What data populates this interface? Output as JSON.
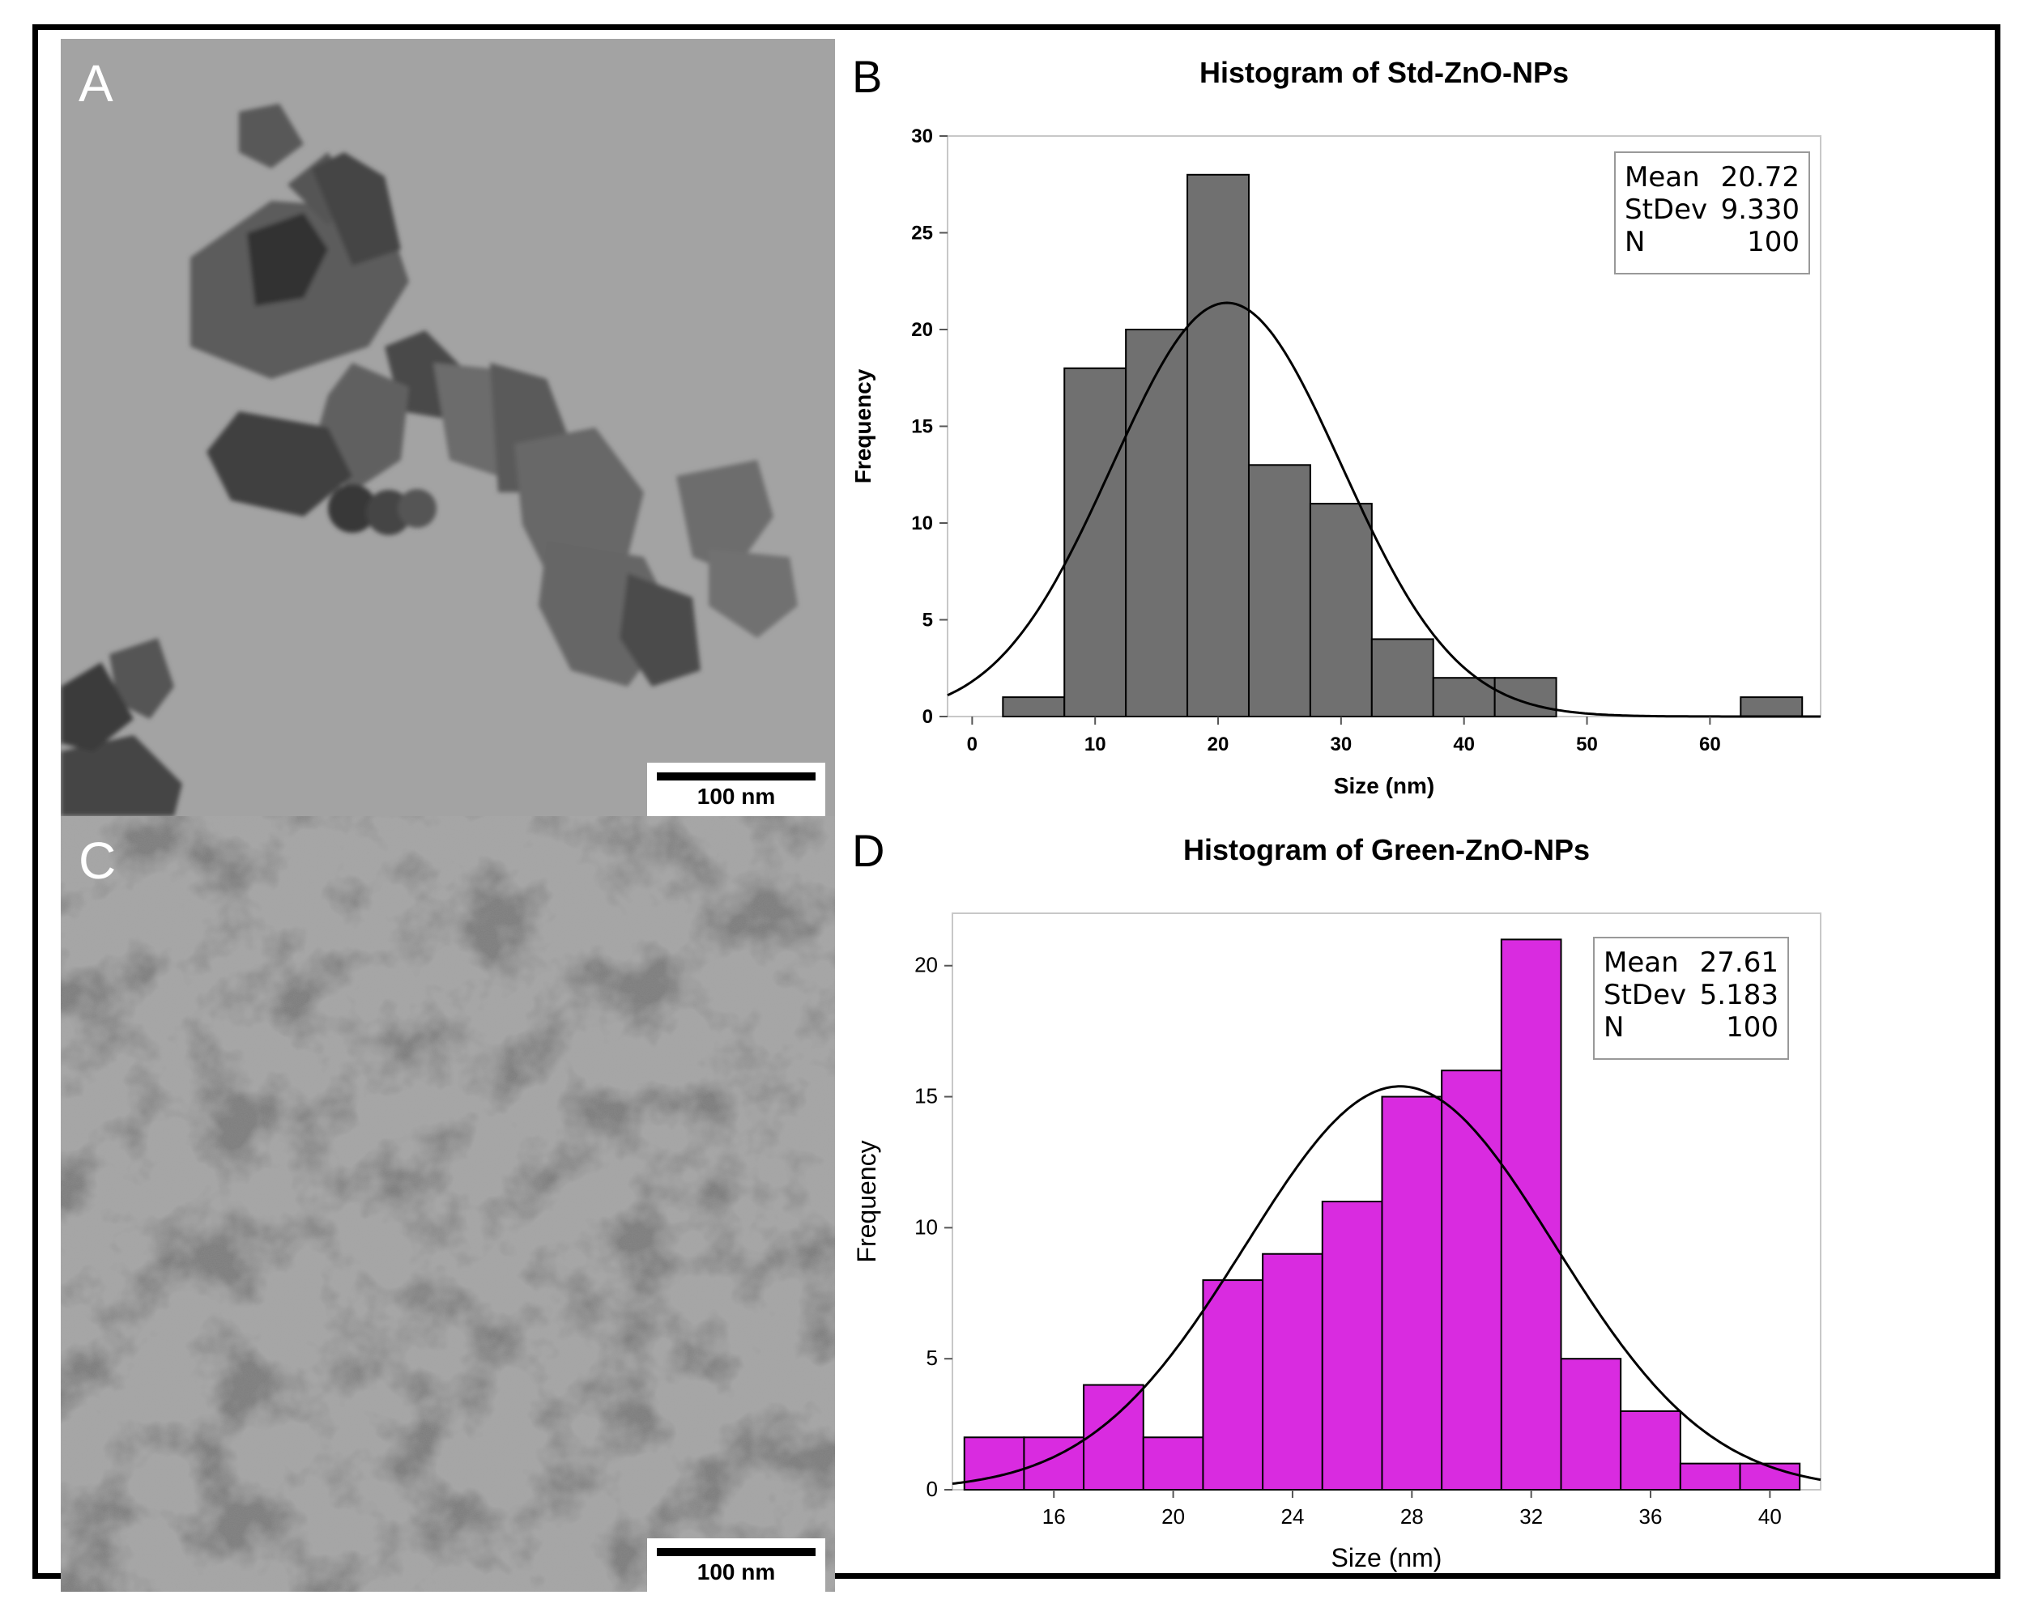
{
  "panels": {
    "a": {
      "letter": "A",
      "scale_label": "100 nm"
    },
    "c": {
      "letter": "C",
      "scale_label": "100 nm"
    },
    "b": {
      "letter": "B"
    },
    "d": {
      "letter": "D"
    }
  },
  "colors": {
    "std_bar": "#707070",
    "green_bar": "#d92be0",
    "outline": "#000000"
  },
  "chart_data": [
    {
      "type": "bar",
      "title": "Histogram of Std-ZnO-NPs",
      "xlabel": "Size (nm)",
      "ylabel": "Frequency",
      "bins": [
        [
          2.5,
          7.5
        ],
        [
          7.5,
          12.5
        ],
        [
          12.5,
          17.5
        ],
        [
          17.5,
          22.5
        ],
        [
          22.5,
          27.5
        ],
        [
          27.5,
          32.5
        ],
        [
          32.5,
          37.5
        ],
        [
          37.5,
          42.5
        ],
        [
          42.5,
          47.5
        ],
        [
          47.5,
          52.5
        ],
        [
          52.5,
          57.5
        ],
        [
          57.5,
          62.5
        ],
        [
          62.5,
          67.5
        ]
      ],
      "values": [
        1,
        18,
        20,
        28,
        13,
        11,
        4,
        2,
        2,
        0,
        0,
        0,
        1
      ],
      "xlim": [
        -2,
        69
      ],
      "ylim": [
        0,
        30
      ],
      "xticks": [
        0,
        10,
        20,
        30,
        40,
        50,
        60
      ],
      "yticks": [
        0,
        5,
        10,
        15,
        20,
        25,
        30
      ],
      "fit": {
        "type": "normal",
        "mean": 20.72,
        "sd": 9.33,
        "n": 100,
        "binwidth": 5
      },
      "stats": [
        [
          "Mean",
          "20.72"
        ],
        [
          "StDev",
          "9.330"
        ],
        [
          "N",
          "100"
        ]
      ],
      "bar_color": "#707070",
      "legend_position": "top-right"
    },
    {
      "type": "bar",
      "title": "Histogram of Green-ZnO-NPs",
      "xlabel": "Size (nm)",
      "ylabel": "Frequency",
      "bins": [
        [
          13,
          15
        ],
        [
          15,
          17
        ],
        [
          17,
          19
        ],
        [
          19,
          21
        ],
        [
          21,
          23
        ],
        [
          23,
          25
        ],
        [
          25,
          27
        ],
        [
          27,
          29
        ],
        [
          29,
          31
        ],
        [
          31,
          33
        ],
        [
          33,
          35
        ],
        [
          35,
          37
        ],
        [
          37,
          39
        ],
        [
          39,
          41
        ]
      ],
      "values": [
        2,
        2,
        4,
        2,
        8,
        9,
        11,
        15,
        16,
        21,
        5,
        3,
        1,
        1
      ],
      "xlim": [
        12.6,
        41.7
      ],
      "ylim": [
        0,
        22
      ],
      "xticks": [
        16,
        20,
        24,
        28,
        32,
        36,
        40
      ],
      "yticks": [
        0,
        5,
        10,
        15,
        20
      ],
      "fit": {
        "type": "normal",
        "mean": 27.61,
        "sd": 5.183,
        "n": 100,
        "binwidth": 2
      },
      "stats": [
        [
          "Mean",
          "27.61"
        ],
        [
          "StDev",
          "5.183"
        ],
        [
          "N",
          "100"
        ]
      ],
      "bar_color": "#d92be0",
      "legend_position": "top-right"
    }
  ]
}
